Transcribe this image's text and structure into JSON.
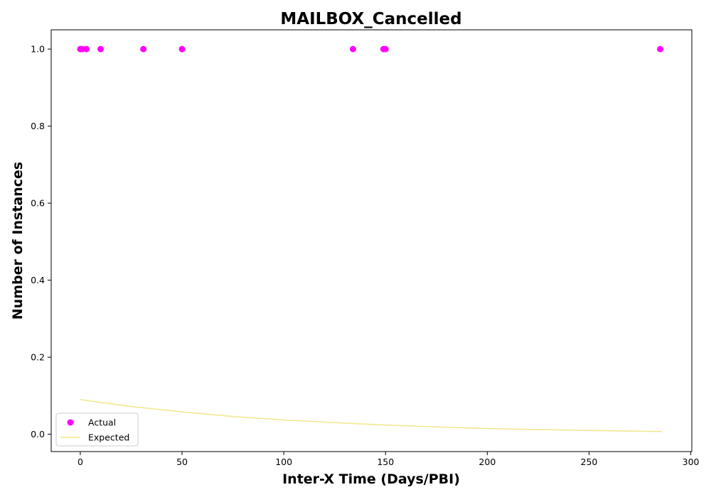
{
  "chart_data": {
    "type": "scatter",
    "title": "MAILBOX_Cancelled",
    "xlabel": "Inter-X Time (Days/PBI)",
    "ylabel": "Number of Instances",
    "xlim": [
      -14.3,
      300.5
    ],
    "ylim": [
      -0.045,
      1.05
    ],
    "xticks": [
      0,
      50,
      100,
      150,
      200,
      250,
      300
    ],
    "yticks": [
      0.0,
      0.2,
      0.4,
      0.6,
      0.8,
      1.0
    ],
    "xtick_labels": [
      "0",
      "50",
      "100",
      "150",
      "200",
      "250",
      "300"
    ],
    "ytick_labels": [
      "0.0",
      "0.2",
      "0.4",
      "0.6",
      "0.8",
      "1.0"
    ],
    "grid": false,
    "legend_position": "lower-left",
    "series": [
      {
        "name": "Actual",
        "kind": "scatter",
        "color": "#ff00ff",
        "x": [
          0,
          1,
          3,
          10,
          31,
          50,
          134,
          149,
          150,
          285
        ],
        "y": [
          1,
          1,
          1,
          1,
          1,
          1,
          1,
          1,
          1,
          1
        ]
      },
      {
        "name": "Expected",
        "kind": "line",
        "color": "#f0e68c",
        "x": [
          0,
          25,
          50,
          75,
          100,
          125,
          150,
          175,
          200,
          225,
          250,
          275,
          286
        ],
        "y": [
          0.09,
          0.072,
          0.058,
          0.046,
          0.037,
          0.03,
          0.024,
          0.019,
          0.015,
          0.012,
          0.0097,
          0.0078,
          0.0071
        ]
      }
    ]
  }
}
